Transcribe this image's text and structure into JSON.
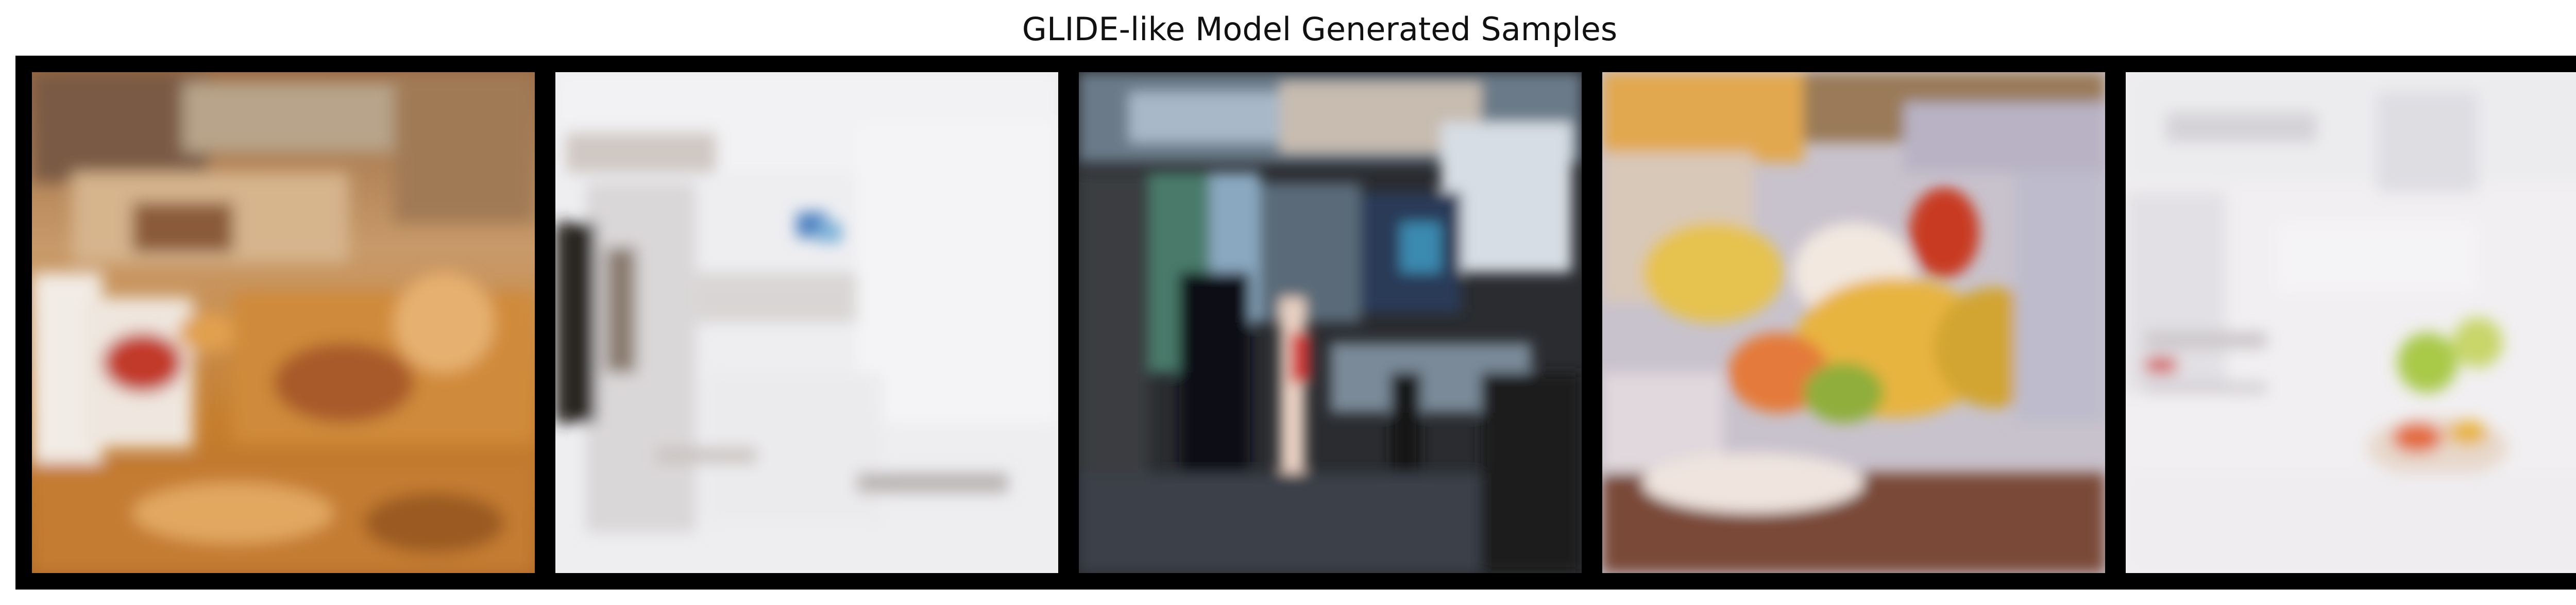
{
  "figure": {
    "title": "GLIDE-like Model Generated Samples"
  },
  "samples": [
    {
      "id": 1,
      "palette": [
        "#c8893a",
        "#e7c79a",
        "#8a5a2c",
        "#f1ece6",
        "#b24a2a",
        "#6b5a4a"
      ]
    },
    {
      "id": 2,
      "palette": [
        "#f1f1f3",
        "#e6e4e6",
        "#d7d4d6",
        "#c9c4c2",
        "#9aa7b3",
        "#7aa0c8"
      ]
    },
    {
      "id": 3,
      "palette": [
        "#1a1b1e",
        "#3d4b5a",
        "#8aa3b8",
        "#c9d3dc",
        "#d24a4a",
        "#f0e2d8"
      ]
    },
    {
      "id": 4,
      "palette": [
        "#e8b24a",
        "#f2d27a",
        "#c94a2a",
        "#b9b7c4",
        "#7a4a3a",
        "#8fae3a"
      ]
    },
    {
      "id": 5,
      "palette": [
        "#f3f1f2",
        "#e8e3e5",
        "#d8d3d4",
        "#a9c94a",
        "#e36a3a",
        "#c8ccd4"
      ]
    }
  ]
}
